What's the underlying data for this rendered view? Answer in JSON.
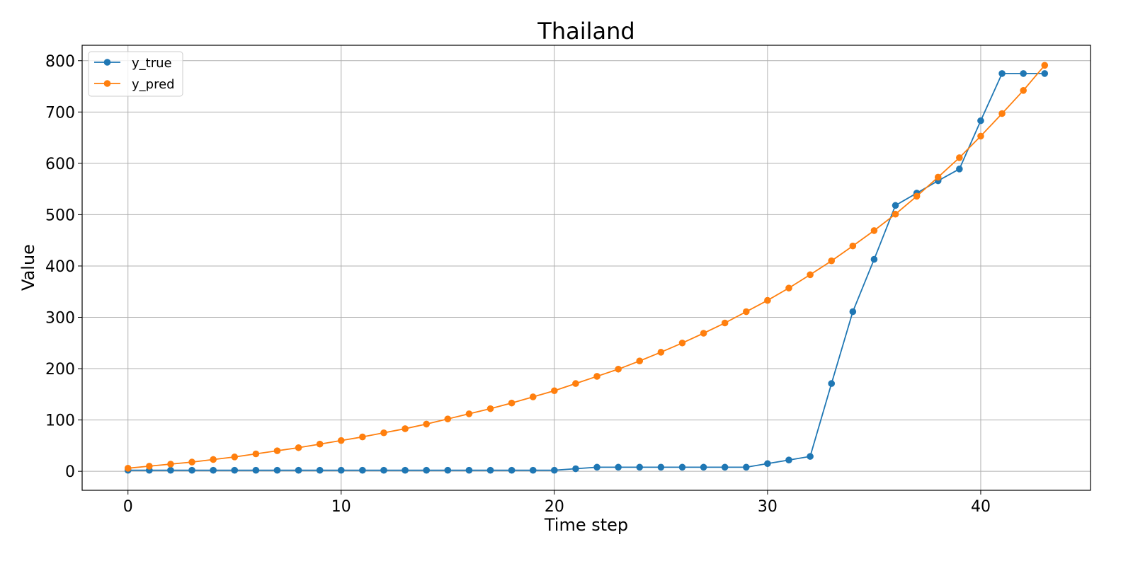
{
  "chart_data": {
    "type": "line",
    "title": "Thailand",
    "xlabel": "Time step",
    "ylabel": "Value",
    "xlim": [
      -2.15,
      45.15
    ],
    "ylim": [
      -37,
      830
    ],
    "xticks": [
      0,
      10,
      20,
      30,
      40
    ],
    "yticks": [
      0,
      100,
      200,
      300,
      400,
      500,
      600,
      700,
      800
    ],
    "grid": true,
    "legend_position": "top-left",
    "series": [
      {
        "name": "y_true",
        "color": "#1f77b4",
        "x": [
          0,
          1,
          2,
          3,
          4,
          5,
          6,
          7,
          8,
          9,
          10,
          11,
          12,
          13,
          14,
          15,
          16,
          17,
          18,
          19,
          20,
          21,
          22,
          23,
          24,
          25,
          26,
          27,
          28,
          29,
          30,
          31,
          32,
          33,
          34,
          35,
          36,
          37,
          38,
          39,
          40,
          41,
          42,
          43
        ],
        "values": [
          2,
          2,
          2,
          2,
          2,
          2,
          2,
          2,
          2,
          2,
          2,
          2,
          2,
          2,
          2,
          2,
          2,
          2,
          2,
          2,
          2,
          5,
          8,
          8,
          8,
          8,
          8,
          8,
          8,
          8,
          15,
          22,
          29,
          171,
          311,
          413,
          518,
          542,
          566,
          589,
          683,
          775,
          775,
          775
        ]
      },
      {
        "name": "y_pred",
        "color": "#ff7f0e",
        "x": [
          0,
          1,
          2,
          3,
          4,
          5,
          6,
          7,
          8,
          9,
          10,
          11,
          12,
          13,
          14,
          15,
          16,
          17,
          18,
          19,
          20,
          21,
          22,
          23,
          24,
          25,
          26,
          27,
          28,
          29,
          30,
          31,
          32,
          33,
          34,
          35,
          36,
          37,
          38,
          39,
          40,
          41,
          42,
          43
        ],
        "values": [
          6,
          10,
          14,
          18,
          23,
          28,
          34,
          40,
          46,
          53,
          60,
          67,
          75,
          83,
          92,
          102,
          112,
          122,
          133,
          145,
          157,
          171,
          185,
          199,
          215,
          232,
          250,
          269,
          289,
          311,
          333,
          357,
          383,
          410,
          439,
          469,
          501,
          536,
          573,
          611,
          653,
          697,
          742,
          791
        ]
      }
    ]
  }
}
